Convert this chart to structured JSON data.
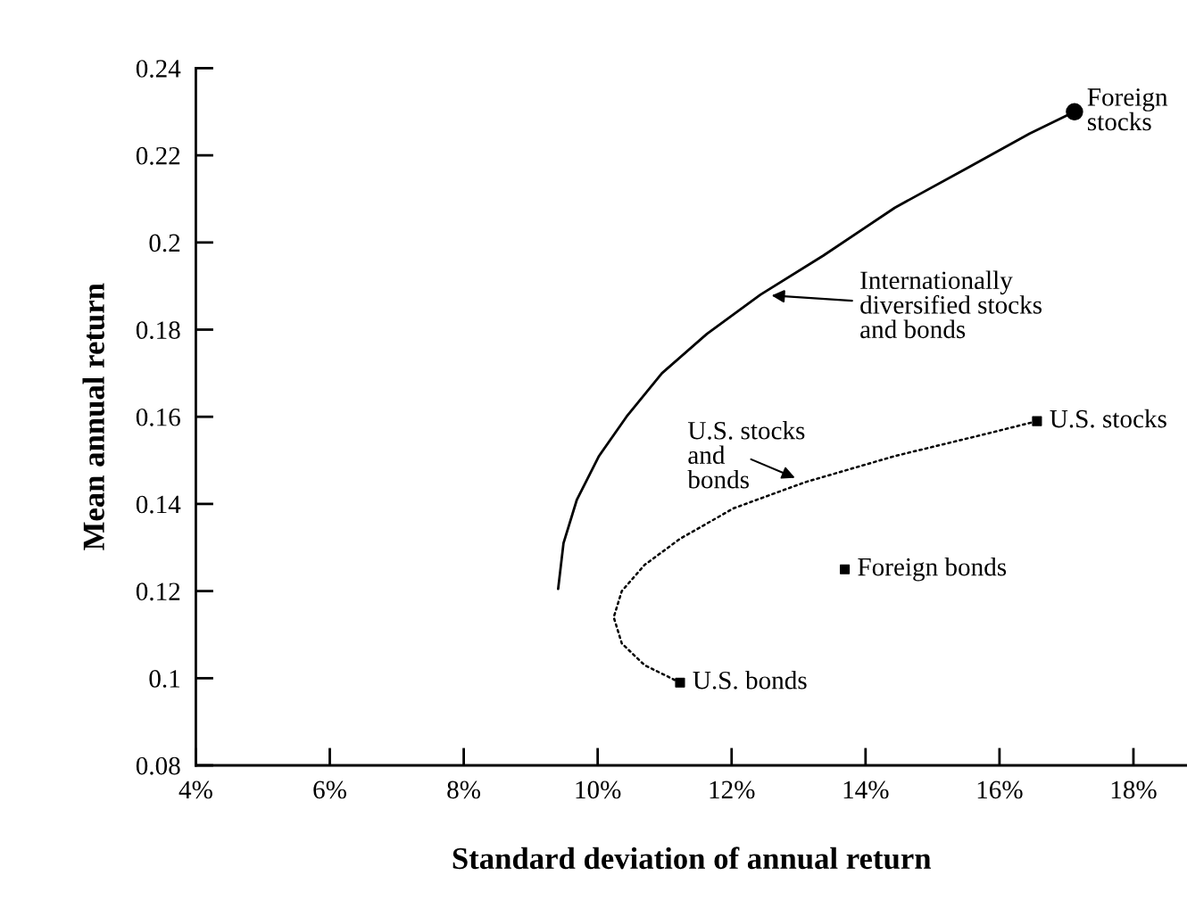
{
  "chart_data": {
    "type": "line",
    "xlabel": "Standard deviation of annual return",
    "ylabel": "Mean annual return",
    "xlim": [
      4,
      18.8
    ],
    "ylim": [
      0.08,
      0.24
    ],
    "xticks": [
      {
        "value": 4,
        "label": "4%"
      },
      {
        "value": 6,
        "label": "6%"
      },
      {
        "value": 8,
        "label": "8%"
      },
      {
        "value": 10,
        "label": "10%"
      },
      {
        "value": 12,
        "label": "12%"
      },
      {
        "value": 14,
        "label": "14%"
      },
      {
        "value": 16,
        "label": "16%"
      },
      {
        "value": 18,
        "label": "18%"
      }
    ],
    "yticks": [
      0.08,
      0.1,
      0.12,
      0.14,
      0.16,
      0.18,
      0.2,
      0.22,
      0.24
    ],
    "grid": false,
    "series": [
      {
        "name": "Internationally\ndiversified stocks\nand bonds",
        "type": "line",
        "line_style": "solid",
        "marker": "none",
        "color": "#000000",
        "x": [
          9.41,
          9.49,
          9.69,
          10.02,
          10.43,
          10.96,
          11.63,
          12.43,
          13.37,
          14.44,
          15.51,
          16.45,
          17.12
        ],
        "values": [
          0.1205,
          0.131,
          0.141,
          0.151,
          0.16,
          0.17,
          0.179,
          0.188,
          0.197,
          0.208,
          0.217,
          0.225,
          0.23
        ]
      },
      {
        "name": "U.S. stocks\nand\nbonds",
        "type": "line",
        "line_style": "dotted",
        "marker": "none",
        "color": "#000000",
        "x": [
          11.23,
          10.7,
          10.36,
          10.24,
          10.36,
          10.7,
          11.23,
          12.03,
          13.1,
          14.44,
          15.78,
          16.56
        ],
        "values": [
          0.099,
          0.103,
          0.108,
          0.114,
          0.12,
          0.126,
          0.132,
          0.139,
          0.145,
          0.151,
          0.156,
          0.159
        ]
      },
      {
        "name": "Foreign\nstocks",
        "type": "scatter",
        "marker": "circle",
        "color": "#000000",
        "x": [
          17.12
        ],
        "values": [
          0.23
        ]
      },
      {
        "name": "U.S. stocks",
        "type": "scatter",
        "marker": "square",
        "color": "#000000",
        "x": [
          16.56
        ],
        "values": [
          0.159
        ]
      },
      {
        "name": "Foreign bonds",
        "type": "scatter",
        "marker": "square",
        "color": "#000000",
        "x": [
          13.69
        ],
        "values": [
          0.125
        ]
      },
      {
        "name": "U.S. bonds",
        "type": "scatter",
        "marker": "square",
        "color": "#000000",
        "x": [
          11.23
        ],
        "values": [
          0.099
        ]
      }
    ]
  }
}
